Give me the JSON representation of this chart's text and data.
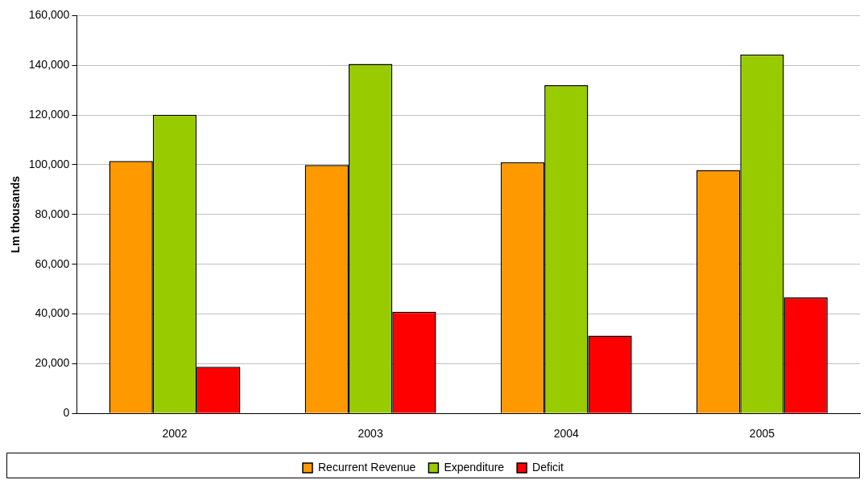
{
  "chart_data": {
    "type": "bar",
    "ylabel": "Lm thousands",
    "categories": [
      "2002",
      "2003",
      "2004",
      "2005"
    ],
    "series": [
      {
        "name": "Recurrent Revenue",
        "color": "#ff9900",
        "values": [
          101500,
          99900,
          101000,
          97900
        ]
      },
      {
        "name": "Expenditure",
        "color": "#99cc00",
        "values": [
          120100,
          140600,
          132000,
          144400
        ]
      },
      {
        "name": "Deficit",
        "color": "#ff0000",
        "values": [
          18700,
          40900,
          31300,
          46600
        ]
      }
    ],
    "ylim": [
      0,
      160000
    ],
    "yticks": [
      {
        "value": 0,
        "label": "0"
      },
      {
        "value": 20000,
        "label": "20,000"
      },
      {
        "value": 40000,
        "label": "40,000"
      },
      {
        "value": 60000,
        "label": "60,000"
      },
      {
        "value": 80000,
        "label": "80,000"
      },
      {
        "value": 100000,
        "label": "100,000"
      },
      {
        "value": 120000,
        "label": "120,000"
      },
      {
        "value": 140000,
        "label": "140,000"
      },
      {
        "value": 160000,
        "label": "160,000"
      }
    ],
    "grid": "y",
    "legend": "bottom"
  }
}
